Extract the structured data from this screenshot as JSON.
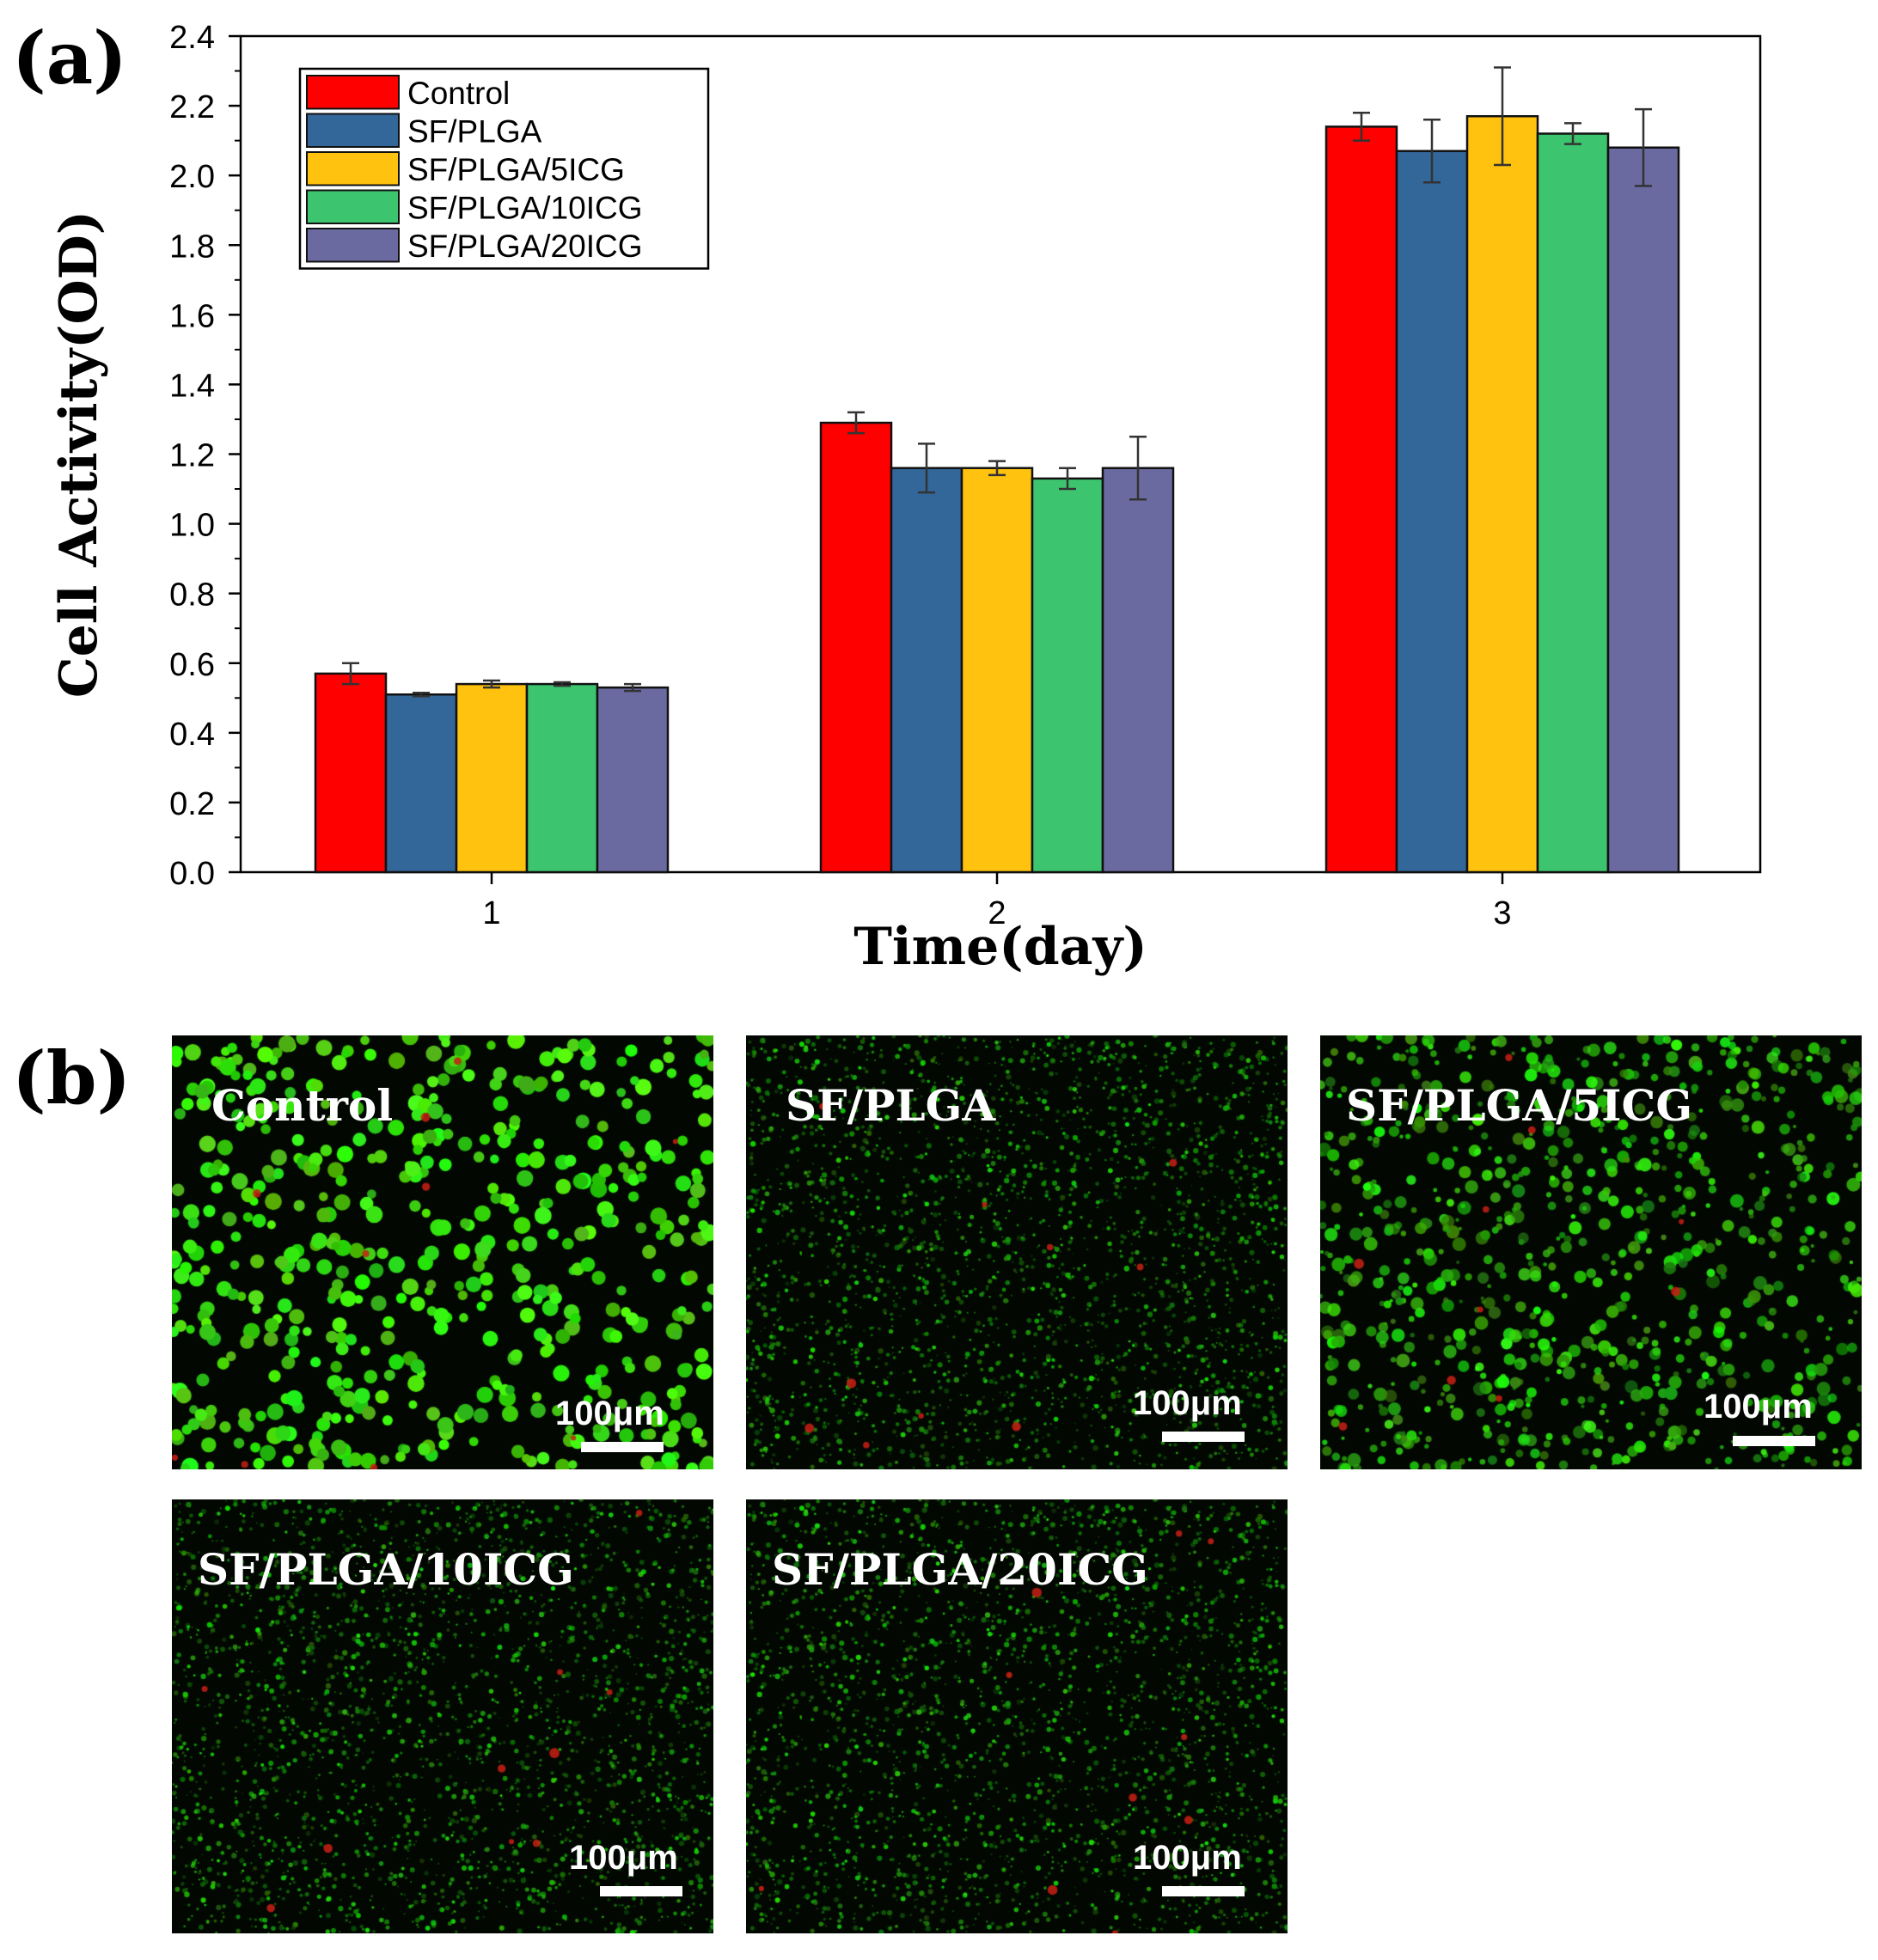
{
  "panel_a_label": "(a)",
  "panel_b_label": "(b)",
  "chart_data": {
    "type": "bar",
    "title": "",
    "xlabel": "Time(day)",
    "ylabel": "Cell Activity(OD)",
    "ylim": [
      0.0,
      2.4
    ],
    "yticks": [
      "0.0",
      "0.2",
      "0.4",
      "0.6",
      "0.8",
      "1.0",
      "1.2",
      "1.4",
      "1.6",
      "1.8",
      "2.0",
      "2.2",
      "2.4"
    ],
    "grid": false,
    "legend_position": "top-left",
    "categories": [
      "1",
      "2",
      "3"
    ],
    "series": [
      {
        "name": "Control",
        "color": "#ff0000",
        "values": [
          0.57,
          1.29,
          2.14
        ],
        "errors": [
          0.03,
          0.03,
          0.04
        ]
      },
      {
        "name": "SF/PLGA",
        "color": "#336699",
        "values": [
          0.51,
          1.16,
          2.07
        ],
        "errors": [
          0.005,
          0.07,
          0.09
        ]
      },
      {
        "name": "SF/PLGA/5ICG",
        "color": "#ffc20e",
        "values": [
          0.54,
          1.16,
          2.17
        ],
        "errors": [
          0.01,
          0.02,
          0.14
        ]
      },
      {
        "name": "SF/PLGA/10ICG",
        "color": "#3dc46e",
        "values": [
          0.54,
          1.13,
          2.12
        ],
        "errors": [
          0.005,
          0.03,
          0.03
        ]
      },
      {
        "name": "SF/PLGA/20ICG",
        "color": "#6a6aa0",
        "values": [
          0.53,
          1.16,
          2.08
        ],
        "errors": [
          0.01,
          0.09,
          0.11
        ]
      }
    ]
  },
  "micrographs": [
    {
      "title": "Control",
      "scale": "100μm",
      "density": "high"
    },
    {
      "title": "SF/PLGA",
      "scale": "100μm",
      "density": "low"
    },
    {
      "title": "SF/PLGA/5ICG",
      "scale": "100μm",
      "density": "medium"
    },
    {
      "title": "SF/PLGA/10ICG",
      "scale": "100μm",
      "density": "low"
    },
    {
      "title": "SF/PLGA/20ICG",
      "scale": "100μm",
      "density": "low"
    }
  ]
}
